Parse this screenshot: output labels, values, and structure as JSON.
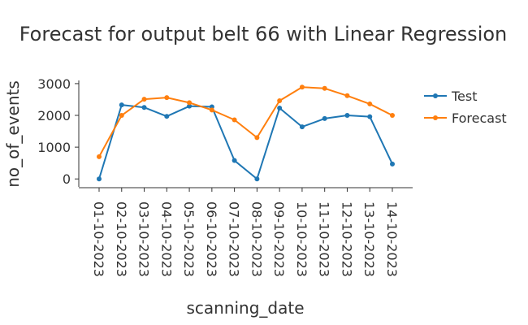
{
  "chart_data": {
    "type": "line",
    "title": "Forecast for output belt 66 with Linear Regression",
    "xlabel": "scanning_date",
    "ylabel": "no_of_events",
    "categories": [
      "01-10-2023",
      "02-10-2023",
      "03-10-2023",
      "04-10-2023",
      "05-10-2023",
      "06-10-2023",
      "07-10-2023",
      "08-10-2023",
      "09-10-2023",
      "10-10-2023",
      "11-10-2023",
      "12-10-2023",
      "13-10-2023",
      "14-10-2023"
    ],
    "yticks": [
      "0",
      "1000",
      "2000",
      "3000"
    ],
    "ylim": [
      -250,
      3100
    ],
    "grid": false,
    "legend_position": "top-right",
    "series": [
      {
        "name": "Test",
        "color": "#1f77b4",
        "values": [
          0,
          2330,
          2250,
          1970,
          2290,
          2270,
          580,
          0,
          2230,
          1640,
          1900,
          2000,
          1960,
          470
        ]
      },
      {
        "name": "Forecast",
        "color": "#ff7f0e",
        "values": [
          700,
          2000,
          2510,
          2560,
          2400,
          2170,
          1860,
          1300,
          2460,
          2890,
          2850,
          2620,
          2360,
          2000
        ]
      }
    ]
  }
}
